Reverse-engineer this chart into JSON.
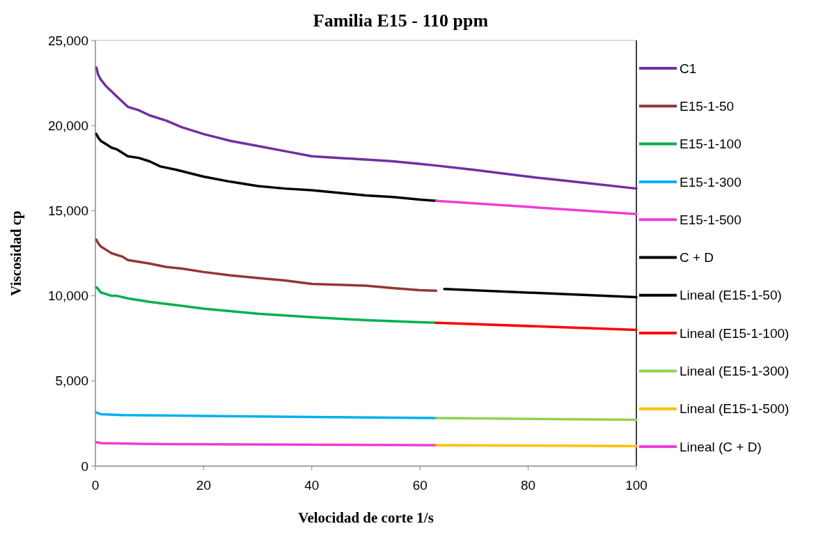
{
  "chart_data": {
    "type": "line",
    "title": "Familia E15 - 110 ppm",
    "xlabel": "Velocidad de corte 1/s",
    "ylabel": "Viscosidad cp",
    "xlim": [
      0,
      100
    ],
    "xticks": [
      0,
      20,
      40,
      60,
      80,
      100
    ],
    "ylim": [
      0,
      25000
    ],
    "yticks": [
      {
        "value": 0,
        "label": "0"
      },
      {
        "value": 5000,
        "label": "5,000"
      },
      {
        "value": 10000,
        "label": "10,000"
      },
      {
        "value": 15000,
        "label": "15,000"
      },
      {
        "value": 20000,
        "label": "20,000"
      },
      {
        "value": 25000,
        "label": "25,000"
      }
    ],
    "grid": false,
    "legend": "right",
    "marker": "none",
    "line_style": "solid",
    "series": [
      {
        "name": "C1",
        "color": "#7030a0",
        "x": [
          0.2,
          0.5,
          1,
          2,
          3,
          4,
          6,
          8,
          10,
          13,
          16,
          20,
          25,
          30,
          35,
          40,
          45,
          50,
          55,
          60,
          63,
          70,
          80,
          90,
          100
        ],
        "values": [
          23400,
          23000,
          22700,
          22300,
          22000,
          21700,
          21100,
          20900,
          20600,
          20300,
          19900,
          19500,
          19100,
          18800,
          18500,
          18200,
          18100,
          18000,
          17900,
          17750,
          17650,
          17400,
          17000,
          16650,
          16300
        ]
      },
      {
        "name": "E15-1-50",
        "color": "#943634",
        "x": [
          0.2,
          0.5,
          1,
          2,
          3,
          5,
          6,
          10,
          13,
          16,
          20,
          25,
          30,
          35,
          40,
          45,
          50,
          55,
          60,
          63
        ],
        "values": [
          13300,
          13100,
          12900,
          12700,
          12500,
          12300,
          12100,
          11900,
          11700,
          11600,
          11400,
          11200,
          11050,
          10900,
          10700,
          10650,
          10600,
          10450,
          10330,
          10300
        ]
      },
      {
        "name": "E15-1-100",
        "color": "#00b050",
        "x": [
          0.2,
          0.5,
          1,
          2,
          3,
          4,
          6,
          10,
          15,
          20,
          30,
          40,
          50,
          60,
          63
        ],
        "values": [
          10500,
          10400,
          10200,
          10100,
          10000,
          10000,
          9850,
          9650,
          9450,
          9250,
          8950,
          8750,
          8570,
          8450,
          8420
        ]
      },
      {
        "name": "E15-1-300",
        "color": "#00b0f0",
        "x": [
          0.2,
          1,
          5,
          20,
          40,
          63
        ],
        "values": [
          3150,
          3050,
          3000,
          2950,
          2880,
          2820
        ]
      },
      {
        "name": "E15-1-500",
        "color": "#f03cd8",
        "x": [
          0.2,
          1,
          10,
          40,
          63
        ],
        "values": [
          1400,
          1350,
          1300,
          1260,
          1230
        ]
      },
      {
        "name": "C + D",
        "color": "#000000",
        "x": [
          0.2,
          0.5,
          1,
          2,
          3,
          4,
          6,
          8,
          10,
          12,
          15,
          20,
          25,
          30,
          35,
          40,
          45,
          50,
          55,
          60,
          63
        ],
        "values": [
          19500,
          19300,
          19100,
          18900,
          18700,
          18600,
          18200,
          18100,
          17900,
          17600,
          17400,
          17000,
          16700,
          16450,
          16300,
          16200,
          16050,
          15900,
          15800,
          15650,
          15580
        ]
      },
      {
        "name": "Lineal (E15-1-50)",
        "color": "#000000",
        "x": [
          64.5,
          100
        ],
        "values": [
          10400,
          9920
        ]
      },
      {
        "name": "Lineal (E15-1-100)",
        "color": "#ff0000",
        "x": [
          63,
          100
        ],
        "values": [
          8420,
          8000
        ]
      },
      {
        "name": "Lineal (E15-1-300)",
        "color": "#92d050",
        "x": [
          63,
          100
        ],
        "values": [
          2820,
          2720
        ]
      },
      {
        "name": "Lineal (E15-1-500)",
        "color": "#ffc000",
        "x": [
          63,
          100
        ],
        "values": [
          1230,
          1180
        ]
      },
      {
        "name": "Lineal (C + D)",
        "color": "#f03cd8",
        "x": [
          63,
          100
        ],
        "values": [
          15580,
          14800
        ]
      }
    ]
  }
}
